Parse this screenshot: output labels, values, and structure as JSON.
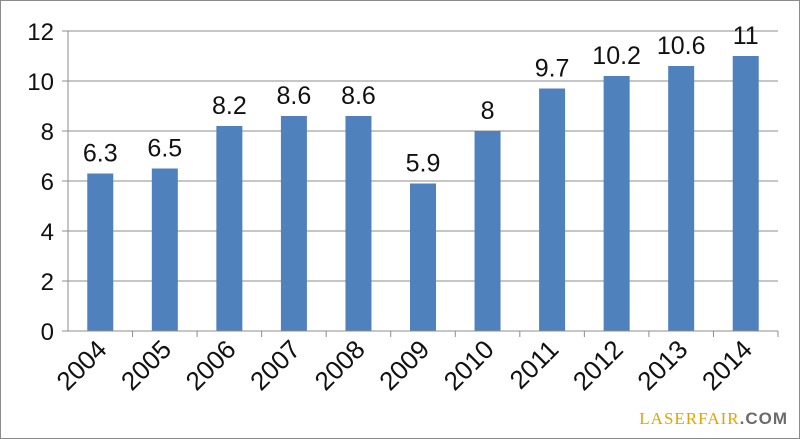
{
  "chart_data": {
    "type": "bar",
    "categories": [
      "2004",
      "2005",
      "2006",
      "2007",
      "2008",
      "2009",
      "2010",
      "2011",
      "2012",
      "2013",
      "2014"
    ],
    "values": [
      6.3,
      6.5,
      8.2,
      8.6,
      8.6,
      5.9,
      8,
      9.7,
      10.2,
      10.6,
      11
    ],
    "data_labels": [
      "6.3",
      "6.5",
      "8.2",
      "8.6",
      "8.6",
      "5.9",
      "8",
      "9.7",
      "10.2",
      "10.6",
      "11"
    ],
    "ylim": [
      0,
      12
    ],
    "yticks": [
      "0",
      "2",
      "4",
      "6",
      "8",
      "10",
      "12"
    ],
    "grid": true,
    "bar_color": "#4f81bd",
    "grid_color": "#8c8c8c"
  },
  "watermark": {
    "part1": "LASERFAIR",
    "part2": ".COM"
  }
}
